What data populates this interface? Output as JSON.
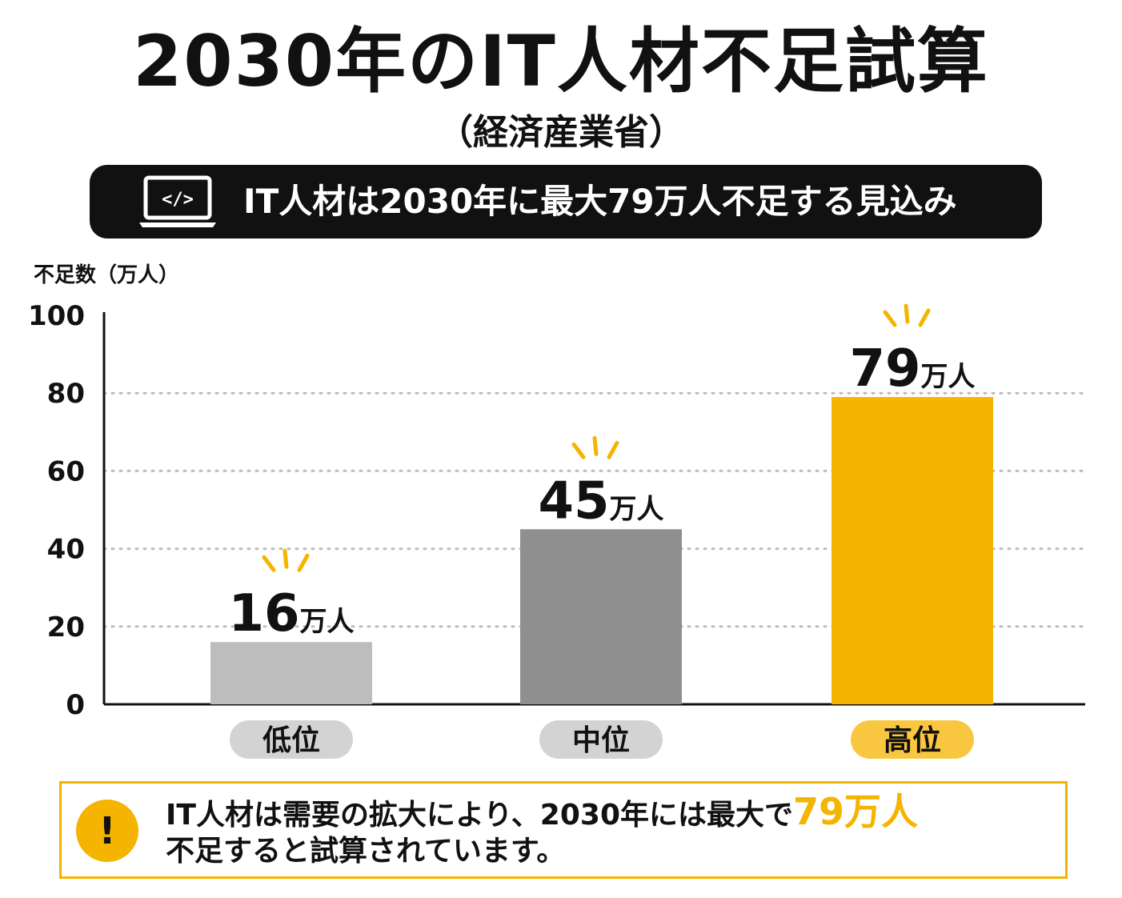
{
  "header": {
    "title": "2030年のIT人材不足試算",
    "subtitle": "（経済産業省）"
  },
  "banner": {
    "icon": "laptop-code-icon",
    "icon_glyph": "</>",
    "text": "IT人材は2030年に最大79万人不足する見込み"
  },
  "chart_data": {
    "type": "bar",
    "ylabel": "不足数（万人）",
    "ylim": [
      0,
      100
    ],
    "yticks": [
      0,
      20,
      40,
      60,
      80,
      100
    ],
    "grid": "horizontal dotted",
    "categories": [
      "低位",
      "中位",
      "高位"
    ],
    "values": [
      16,
      45,
      79
    ],
    "value_numbers": [
      "16",
      "45",
      "79"
    ],
    "value_unit": "万人",
    "bar_colors": [
      "#bdbdbd",
      "#8f8f8f",
      "#f5b400"
    ],
    "label_pill_colors": [
      "#d3d3d3",
      "#d3d3d3",
      "#f9c640"
    ],
    "sparkle_color": "#f5b400"
  },
  "callout": {
    "icon": "exclamation-icon",
    "icon_glyph": "!",
    "line1_text": "IT人材は需要の拡大により、2030年には最大で",
    "line1_highlight": "79万人",
    "line2_text": "不足すると試算されています。",
    "accent": "#f5b400"
  }
}
